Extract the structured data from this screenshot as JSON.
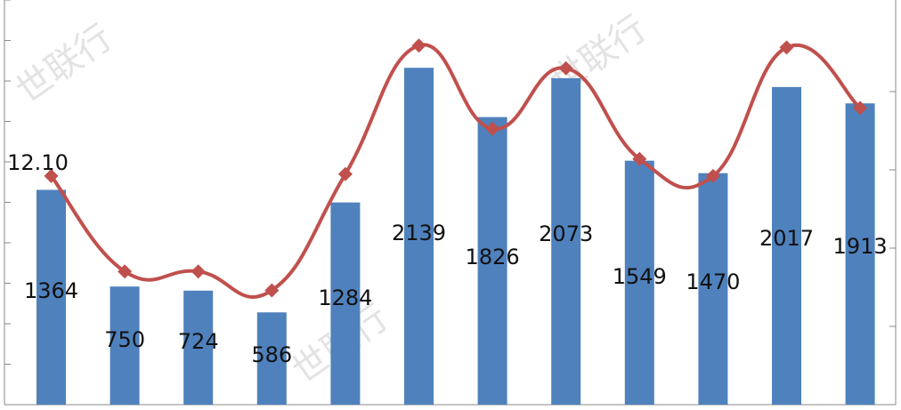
{
  "chart_data": {
    "type": "bar",
    "categories": [
      "",
      "",
      "",
      "",
      "",
      "",
      "",
      "",
      "",
      "",
      "",
      ""
    ],
    "series": [
      {
        "type": "bar",
        "values": [
          1364,
          750,
          724,
          586,
          1284,
          2139,
          1826,
          2073,
          1549,
          1470,
          2017,
          1913
        ],
        "color": "#4f81bd",
        "data_labels": [
          "1364",
          "750",
          "724",
          "586",
          "1284",
          "2139",
          "1826",
          "2073",
          "1549",
          "1470",
          "2017",
          "1913"
        ]
      },
      {
        "type": "line",
        "values": [
          12.1,
          7.05,
          7.05,
          6.05,
          12.2,
          19.0,
          14.6,
          17.8,
          13.0,
          12.1,
          18.9,
          15.7
        ],
        "color": "#c0504d",
        "smooth": true,
        "marker": "diamond",
        "data_labels": [
          "12.10"
        ]
      }
    ],
    "ylim_left": [
      0,
      2400
    ],
    "ylim_right": [
      0,
      20
    ],
    "grid": false
  },
  "watermark": {
    "text": "世联行"
  }
}
